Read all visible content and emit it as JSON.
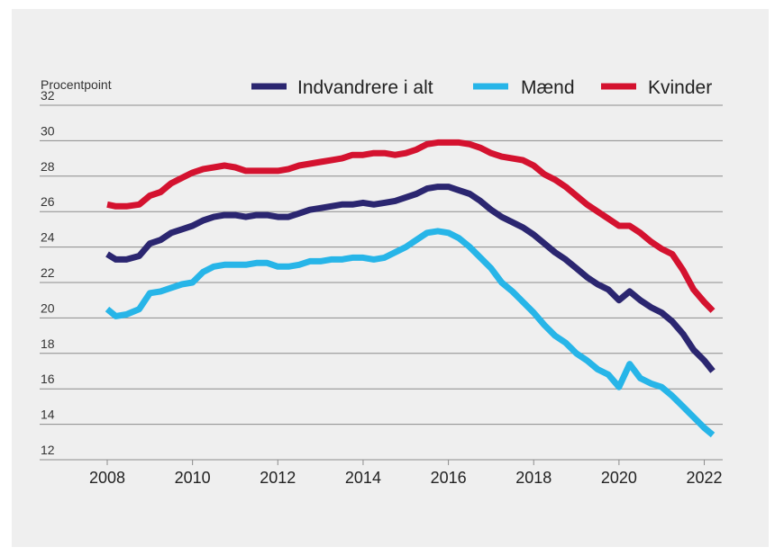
{
  "chart_data": {
    "type": "line",
    "ylabel": "Procentpoint",
    "ylim": [
      12,
      32
    ],
    "yticks": [
      12,
      14,
      16,
      18,
      20,
      22,
      24,
      26,
      28,
      30,
      32
    ],
    "xlim": [
      2008,
      2022.2
    ],
    "xticks": [
      2008,
      2010,
      2012,
      2014,
      2016,
      2018,
      2020,
      2022
    ],
    "grid": "horizontal",
    "legend": "top-right",
    "series": [
      {
        "name": "Indvandrere i alt",
        "color": "#2b2670",
        "x": [
          2008.0,
          2008.2,
          2008.45,
          2008.75,
          2009.0,
          2009.25,
          2009.5,
          2009.75,
          2010.0,
          2010.25,
          2010.5,
          2010.75,
          2011.0,
          2011.25,
          2011.5,
          2011.75,
          2012.0,
          2012.25,
          2012.5,
          2012.75,
          2013.0,
          2013.25,
          2013.5,
          2013.75,
          2014.0,
          2014.25,
          2014.5,
          2014.75,
          2015.0,
          2015.25,
          2015.5,
          2015.75,
          2016.0,
          2016.25,
          2016.5,
          2016.75,
          2017.0,
          2017.25,
          2017.5,
          2017.75,
          2018.0,
          2018.25,
          2018.5,
          2018.75,
          2019.0,
          2019.25,
          2019.5,
          2019.75,
          2020.0,
          2020.25,
          2020.5,
          2020.75,
          2021.0,
          2021.25,
          2021.5,
          2021.75,
          2022.0,
          2022.2
        ],
        "values": [
          23.6,
          23.3,
          23.3,
          23.5,
          24.2,
          24.4,
          24.8,
          25.0,
          25.2,
          25.5,
          25.7,
          25.8,
          25.8,
          25.7,
          25.8,
          25.8,
          25.7,
          25.7,
          25.9,
          26.1,
          26.2,
          26.3,
          26.4,
          26.4,
          26.5,
          26.4,
          26.5,
          26.6,
          26.8,
          27.0,
          27.3,
          27.4,
          27.4,
          27.2,
          27.0,
          26.6,
          26.1,
          25.7,
          25.4,
          25.1,
          24.7,
          24.2,
          23.7,
          23.3,
          22.8,
          22.3,
          21.9,
          21.6,
          21.0,
          21.5,
          21.0,
          20.6,
          20.3,
          19.8,
          19.1,
          18.2,
          17.6,
          17.0
        ]
      },
      {
        "name": "Mænd",
        "color": "#27b5e8",
        "x": [
          2008.0,
          2008.2,
          2008.45,
          2008.75,
          2009.0,
          2009.25,
          2009.5,
          2009.75,
          2010.0,
          2010.25,
          2010.5,
          2010.75,
          2011.0,
          2011.25,
          2011.5,
          2011.75,
          2012.0,
          2012.25,
          2012.5,
          2012.75,
          2013.0,
          2013.25,
          2013.5,
          2013.75,
          2014.0,
          2014.25,
          2014.5,
          2014.75,
          2015.0,
          2015.25,
          2015.5,
          2015.75,
          2016.0,
          2016.25,
          2016.5,
          2016.75,
          2017.0,
          2017.25,
          2017.5,
          2017.75,
          2018.0,
          2018.25,
          2018.5,
          2018.75,
          2019.0,
          2019.25,
          2019.5,
          2019.75,
          2020.0,
          2020.25,
          2020.5,
          2020.75,
          2021.0,
          2021.25,
          2021.5,
          2021.75,
          2022.0,
          2022.2
        ],
        "values": [
          20.5,
          20.1,
          20.2,
          20.5,
          21.4,
          21.5,
          21.7,
          21.9,
          22.0,
          22.6,
          22.9,
          23.0,
          23.0,
          23.0,
          23.1,
          23.1,
          22.9,
          22.9,
          23.0,
          23.2,
          23.2,
          23.3,
          23.3,
          23.4,
          23.4,
          23.3,
          23.4,
          23.7,
          24.0,
          24.4,
          24.8,
          24.9,
          24.8,
          24.5,
          24.0,
          23.4,
          22.8,
          22.0,
          21.5,
          20.9,
          20.3,
          19.6,
          19.0,
          18.6,
          18.0,
          17.6,
          17.1,
          16.8,
          16.1,
          17.4,
          16.6,
          16.3,
          16.1,
          15.6,
          15.0,
          14.4,
          13.8,
          13.4
        ]
      },
      {
        "name": "Kvinder",
        "color": "#d4122f",
        "x": [
          2008.0,
          2008.2,
          2008.45,
          2008.75,
          2009.0,
          2009.25,
          2009.5,
          2009.75,
          2010.0,
          2010.25,
          2010.5,
          2010.75,
          2011.0,
          2011.25,
          2011.5,
          2011.75,
          2012.0,
          2012.25,
          2012.5,
          2012.75,
          2013.0,
          2013.25,
          2013.5,
          2013.75,
          2014.0,
          2014.25,
          2014.5,
          2014.75,
          2015.0,
          2015.25,
          2015.5,
          2015.75,
          2016.0,
          2016.25,
          2016.5,
          2016.75,
          2017.0,
          2017.25,
          2017.5,
          2017.75,
          2018.0,
          2018.25,
          2018.5,
          2018.75,
          2019.0,
          2019.25,
          2019.5,
          2019.75,
          2020.0,
          2020.25,
          2020.5,
          2020.75,
          2021.0,
          2021.25,
          2021.5,
          2021.75,
          2022.0,
          2022.2
        ],
        "values": [
          26.4,
          26.3,
          26.3,
          26.4,
          26.9,
          27.1,
          27.6,
          27.9,
          28.2,
          28.4,
          28.5,
          28.6,
          28.5,
          28.3,
          28.3,
          28.3,
          28.3,
          28.4,
          28.6,
          28.7,
          28.8,
          28.9,
          29.0,
          29.2,
          29.2,
          29.3,
          29.3,
          29.2,
          29.3,
          29.5,
          29.8,
          29.9,
          29.9,
          29.9,
          29.8,
          29.6,
          29.3,
          29.1,
          29.0,
          28.9,
          28.6,
          28.1,
          27.8,
          27.4,
          26.9,
          26.4,
          26.0,
          25.6,
          25.2,
          25.2,
          24.8,
          24.3,
          23.9,
          23.6,
          22.7,
          21.6,
          20.9,
          20.4
        ]
      }
    ]
  }
}
